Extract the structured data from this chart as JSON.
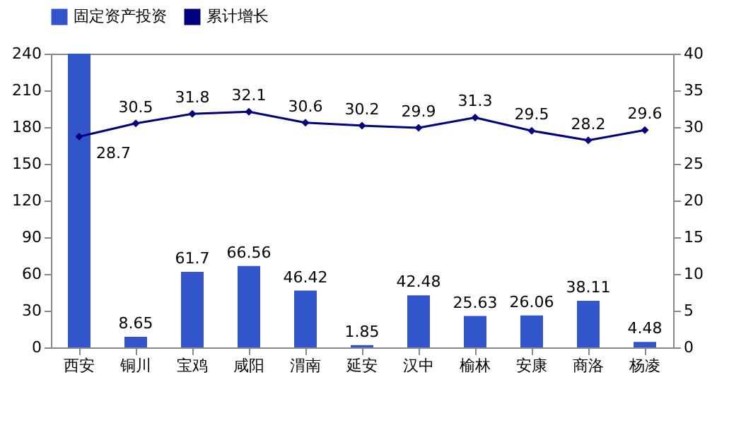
{
  "chart_data": {
    "type": "bar",
    "categories": [
      "西安",
      "铜川",
      "宝鸡",
      "咸阳",
      "渭南",
      "延安",
      "汉中",
      "榆林",
      "安康",
      "商洛",
      "杨凌"
    ],
    "series": [
      {
        "name": "固定资产投资",
        "color": "#3355cc",
        "values": [
          240,
          8.65,
          61.7,
          66.56,
          46.42,
          1.85,
          42.48,
          25.63,
          26.06,
          38.11,
          4.48
        ],
        "value_labels": [
          null,
          "8.65",
          "61.7",
          "66.56",
          "46.42",
          "1.85",
          "42.48",
          "25.63",
          "26.06",
          "38.11",
          "4.48"
        ]
      },
      {
        "name": "累计增长",
        "type": "line",
        "axis": "y2",
        "color": "#000080",
        "values": [
          28.7,
          30.5,
          31.8,
          32.1,
          30.6,
          30.2,
          29.9,
          31.3,
          29.5,
          28.2,
          29.6
        ],
        "value_labels": [
          "28.7",
          "30.5",
          "31.8",
          "32.1",
          "30.6",
          "30.2",
          "29.9",
          "31.3",
          "29.5",
          "28.2",
          "29.6"
        ]
      }
    ],
    "ylim": [
      0,
      240
    ],
    "yticks": [
      0,
      30,
      60,
      90,
      120,
      150,
      180,
      210,
      240
    ],
    "y2lim": [
      0,
      40
    ],
    "y2ticks": [
      0,
      5,
      10,
      15,
      20,
      25,
      30,
      35,
      40
    ],
    "legend": "top",
    "marker": "diamond",
    "grid": false
  }
}
